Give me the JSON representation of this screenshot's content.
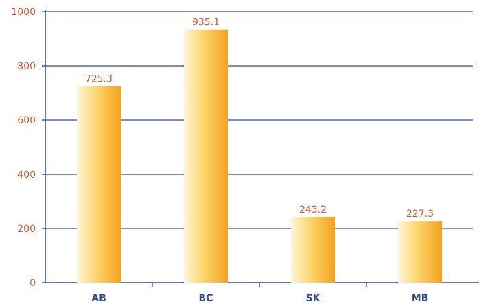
{
  "chart_data": {
    "type": "bar",
    "categories": [
      "AB",
      "BC",
      "SK",
      "MB"
    ],
    "values": [
      725.3,
      935.1,
      243.2,
      227.3
    ],
    "data_labels": [
      "725.3",
      "935.1",
      "243.2",
      "227.3"
    ],
    "title": "",
    "xlabel": "",
    "ylabel": "",
    "ylim": [
      0,
      1000
    ],
    "yticks": [
      0,
      200,
      400,
      600,
      800,
      1000
    ],
    "ytick_labels": [
      "0",
      "200",
      "400",
      "600",
      "800",
      "1000"
    ],
    "grid": true,
    "legend": "none",
    "colors": {
      "bar_light": "#fff6d8",
      "bar_mid": "#fcd56a",
      "bar_dark": "#f4a21c",
      "grid": "#2f4a9a",
      "axis": "#2f4a9a",
      "tick_text": "#d9562b",
      "category_text": "#2f4a9a",
      "data_label_text": "#d9562b"
    }
  }
}
